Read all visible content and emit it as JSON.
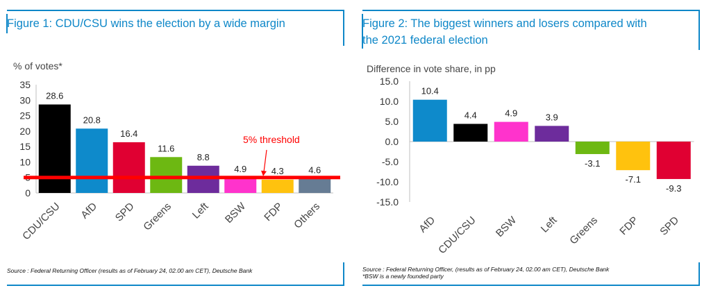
{
  "figure1": {
    "title": "Figure 1: CDU/CSU wins the election by a wide margin",
    "source": "Source : Federal Returning Officer (results as of February 24, 02.00 am CET), Deutsche Bank",
    "colors": [
      "#000000",
      "#0e8acb",
      "#e00032",
      "#6db812",
      "#6d2c9c",
      "#ff33cc",
      "#ffc20e",
      "#667c94"
    ],
    "threshold_color": "#ff0000",
    "chart_data": {
      "type": "bar",
      "ylabel": "% of votes*",
      "categories": [
        "CDU/CSU",
        "AfD",
        "SPD",
        "Greens",
        "Left",
        "BSW",
        "FDP",
        "Others"
      ],
      "values": [
        28.6,
        20.8,
        16.4,
        11.6,
        8.8,
        4.9,
        4.3,
        4.6
      ],
      "value_labels": [
        "28.6",
        "20.8",
        "16.4",
        "11.6",
        "8.8",
        "4.9",
        "4.3",
        "4.6"
      ],
      "ylim": [
        0,
        35
      ],
      "yticks": [
        "0",
        "5",
        "10",
        "15",
        "20",
        "25",
        "30",
        "35"
      ],
      "grid": false,
      "threshold": {
        "value": 5,
        "label": "5% threshold"
      }
    }
  },
  "figure2": {
    "title_line1": "Figure 2: The biggest winners and losers compared with",
    "title_line2": "the 2021 federal election",
    "source_line1": "Source : Federal Returning Officer, (results as of February 24, 02.00 am CET), Deutsche Bank",
    "source_line2": "*BSW is a newly founded party",
    "colors": [
      "#0e8acb",
      "#000000",
      "#ff33cc",
      "#6d2c9c",
      "#6db812",
      "#ffc20e",
      "#e00032"
    ],
    "chart_data": {
      "type": "bar",
      "ylabel": "Difference in vote share, in pp",
      "categories": [
        "AfD",
        "CDU/CSU",
        "BSW",
        "Left",
        "Greens",
        "FDP",
        "SPD"
      ],
      "values": [
        10.4,
        4.4,
        4.9,
        3.9,
        -3.1,
        -7.1,
        -9.3
      ],
      "value_labels": [
        "10.4",
        "4.4",
        "4.9",
        "3.9",
        "-3.1",
        "-7.1",
        "-9.3"
      ],
      "ylim": [
        -15,
        15
      ],
      "yticks": [
        "-15.0",
        "-10.0",
        "-5.0",
        "0.0",
        "5.0",
        "10.0",
        "15.0"
      ],
      "grid": false
    }
  }
}
